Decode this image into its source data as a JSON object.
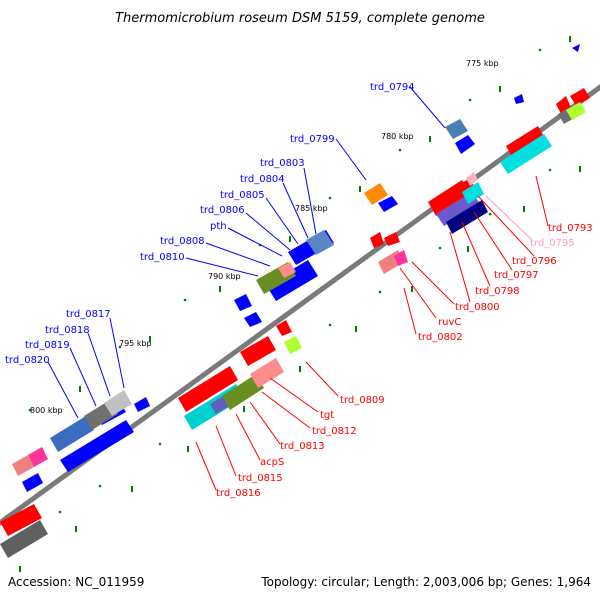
{
  "title": "Thermomicrobium roseum DSM 5159, complete genome",
  "footer": {
    "accession": "Accession: NC_011959",
    "summary": "Topology: circular; Length: 2,003,006 bp; Genes: 1,964"
  },
  "scale_ticks": [
    "775 kbp",
    "780 kbp",
    "785 kbp",
    "790 kbp",
    "795 kbp",
    "800 kbp"
  ],
  "forward_gene_labels": [
    "trd_0794",
    "trd_0799",
    "trd_0803",
    "trd_0804",
    "trd_0805",
    "trd_0806",
    "pth",
    "trd_0808",
    "trd_0810",
    "trd_0817",
    "trd_0818",
    "trd_0819",
    "trd_0820"
  ],
  "reverse_gene_labels": [
    "trd_0793",
    "trd_0795",
    "trd_0796",
    "trd_0797",
    "trd_0798",
    "trd_0800",
    "ruvC",
    "trd_0802",
    "trd_0809",
    "tgt",
    "trd_0812",
    "trd_0813",
    "acpS",
    "trd_0815",
    "trd_0816"
  ],
  "colors": {
    "forward_gene": "#0000ff",
    "reverse_gene": "#ff0000",
    "backbone": "#808080",
    "tick_minor": "#008000",
    "label_forward": "#0000ff",
    "label_reverse": "#ff0000",
    "label_pink": "#ff99cc"
  }
}
